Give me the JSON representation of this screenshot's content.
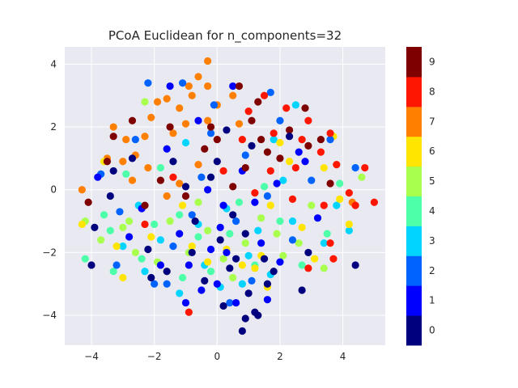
{
  "chart_data": {
    "type": "scatter",
    "title": "PCoA Euclidean for n_components=32",
    "xlabel": "",
    "ylabel": "",
    "xlim": [
      -4.85,
      5.35
    ],
    "ylim": [
      -4.95,
      4.55
    ],
    "x_ticks": [
      -4,
      -2,
      0,
      2,
      4
    ],
    "y_ticks": [
      -4,
      -2,
      0,
      2,
      4
    ],
    "x_tick_labels": [
      "−4",
      "−2",
      "0",
      "2",
      "4"
    ],
    "y_tick_labels": [
      "−4",
      "−2",
      "0",
      "2",
      "4"
    ],
    "grid": true,
    "background": "#e9e9f1",
    "colormap": "jet",
    "colorbar": {
      "labels": [
        "0",
        "1",
        "2",
        "3",
        "4",
        "5",
        "6",
        "7",
        "8",
        "9"
      ],
      "colors": [
        "#00007f",
        "#0000ff",
        "#0063ff",
        "#00d4ff",
        "#4effa9",
        "#a9ff4e",
        "#ffe500",
        "#ff7f00",
        "#ff1600",
        "#7f0000"
      ]
    },
    "series": [
      {
        "class": 0,
        "points": [
          [
            0.8,
            -4.5
          ],
          [
            0.9,
            -4.1
          ],
          [
            1.2,
            -3.9
          ],
          [
            1.3,
            -4.0
          ],
          [
            0.2,
            -3.7
          ],
          [
            -2.1,
            -2.8
          ],
          [
            -1.6,
            -2.6
          ],
          [
            0.4,
            -2.5
          ],
          [
            1.0,
            -3.3
          ],
          [
            1.6,
            -3.0
          ],
          [
            4.4,
            -2.4
          ],
          [
            -0.7,
            -1.0
          ],
          [
            0.1,
            -1.6
          ],
          [
            0.6,
            -2.2
          ],
          [
            -3.9,
            -1.2
          ],
          [
            -4.0,
            -2.4
          ],
          [
            -3.4,
            -0.2
          ],
          [
            -1.4,
            0.9
          ],
          [
            -0.2,
            0.4
          ],
          [
            1.1,
            1.4
          ],
          [
            -2.7,
            1.0
          ],
          [
            2.7,
            -3.2
          ],
          [
            1.8,
            -2.6
          ],
          [
            0.5,
            -0.8
          ],
          [
            -0.8,
            -2.0
          ],
          [
            2.3,
            1.7
          ],
          [
            -1.0,
            0.1
          ],
          [
            0.9,
            -1.4
          ],
          [
            -2.2,
            -1.9
          ],
          [
            -0.4,
            -2.9
          ],
          [
            1.5,
            -2.2
          ],
          [
            0.0,
            0.9
          ],
          [
            -3.3,
            0.6
          ],
          [
            2.9,
            -2.0
          ],
          [
            0.3,
            1.9
          ]
        ]
      },
      {
        "class": 1,
        "points": [
          [
            -1.0,
            -3.6
          ],
          [
            -0.5,
            -3.2
          ],
          [
            0.6,
            -3.6
          ],
          [
            0.0,
            -3.0
          ],
          [
            -1.8,
            -2.4
          ],
          [
            1.6,
            -3.5
          ],
          [
            -0.9,
            -2.4
          ],
          [
            0.3,
            -2.0
          ],
          [
            2.0,
            -2.3
          ],
          [
            -2.4,
            -0.6
          ],
          [
            1.2,
            -0.4
          ],
          [
            -0.3,
            0.0
          ],
          [
            0.8,
            0.6
          ],
          [
            -1.6,
            1.3
          ],
          [
            2.6,
            1.2
          ],
          [
            -3.8,
            0.4
          ],
          [
            0.1,
            -1.2
          ],
          [
            -1.2,
            -1.4
          ],
          [
            1.9,
            0.2
          ],
          [
            -0.6,
            2.2
          ],
          [
            -2.8,
            -1.5
          ],
          [
            3.2,
            -0.9
          ],
          [
            0.5,
            3.3
          ],
          [
            -1.5,
            3.3
          ],
          [
            2.8,
            0.9
          ],
          [
            0.2,
            -0.5
          ],
          [
            1.4,
            -1.7
          ],
          [
            -0.2,
            -1.9
          ]
        ]
      },
      {
        "class": 2,
        "points": [
          [
            -2.2,
            3.4
          ],
          [
            -1.1,
            3.4
          ],
          [
            -0.2,
            1.8
          ],
          [
            2.0,
            2.2
          ],
          [
            -3.7,
            0.5
          ],
          [
            -3.1,
            -0.7
          ],
          [
            -2.0,
            -3.0
          ],
          [
            -1.6,
            -3.0
          ],
          [
            1.1,
            -2.9
          ],
          [
            0.4,
            -3.6
          ],
          [
            1.6,
            -0.2
          ],
          [
            -0.5,
            0.4
          ],
          [
            0.9,
            1.1
          ],
          [
            -2.6,
            1.6
          ],
          [
            1.7,
            3.1
          ],
          [
            3.6,
            1.6
          ],
          [
            4.4,
            0.7
          ],
          [
            -0.8,
            -0.8
          ],
          [
            0.6,
            -1.0
          ],
          [
            -1.4,
            -1.8
          ],
          [
            2.4,
            -1.6
          ],
          [
            -3.2,
            -2.4
          ],
          [
            3.0,
            0.3
          ],
          [
            -0.1,
            2.7
          ]
        ]
      },
      {
        "class": 3,
        "points": [
          [
            -1.2,
            -3.3
          ],
          [
            0.1,
            -3.1
          ],
          [
            0.8,
            -3.0
          ],
          [
            2.4,
            -1.0
          ],
          [
            3.8,
            -0.5
          ],
          [
            4.2,
            -1.3
          ],
          [
            4.4,
            0.7
          ],
          [
            -2.5,
            -0.5
          ],
          [
            -1.8,
            -1.6
          ],
          [
            -0.6,
            -1.1
          ],
          [
            1.3,
            -1.3
          ],
          [
            2.1,
            0.3
          ],
          [
            -1.0,
            1.5
          ],
          [
            2.5,
            2.7
          ],
          [
            1.8,
            1.6
          ],
          [
            -3.0,
            -1.8
          ],
          [
            0.3,
            -0.6
          ],
          [
            1.0,
            -2.1
          ],
          [
            3.4,
            -1.7
          ],
          [
            -0.4,
            -2.4
          ],
          [
            -2.3,
            -2.6
          ],
          [
            1.7,
            -2.7
          ]
        ]
      },
      {
        "class": 4,
        "points": [
          [
            -4.2,
            -2.2
          ],
          [
            -3.4,
            -1.3
          ],
          [
            -2.9,
            0.5
          ],
          [
            -3.3,
            -2.6
          ],
          [
            -2.0,
            -1.1
          ],
          [
            -1.2,
            -0.8
          ],
          [
            0.4,
            -1.4
          ],
          [
            2.0,
            -1.0
          ],
          [
            3.5,
            -1.4
          ],
          [
            1.5,
            0.1
          ],
          [
            -0.6,
            -1.5
          ],
          [
            -1.8,
            0.7
          ],
          [
            0.7,
            -0.4
          ],
          [
            -2.4,
            -2.2
          ],
          [
            1.2,
            -2.4
          ],
          [
            -0.2,
            -2.6
          ],
          [
            2.7,
            -2.4
          ],
          [
            3.9,
            0.2
          ],
          [
            -3.6,
            -0.8
          ],
          [
            -1.1,
            -2.8
          ]
        ]
      },
      {
        "class": 5,
        "points": [
          [
            -4.2,
            -1.0
          ],
          [
            -3.7,
            -1.6
          ],
          [
            -3.0,
            -1.2
          ],
          [
            -2.3,
            2.8
          ],
          [
            -2.8,
            -1.0
          ],
          [
            -1.5,
            -1.0
          ],
          [
            -0.9,
            -2.0
          ],
          [
            0.2,
            -2.2
          ],
          [
            1.4,
            -0.9
          ],
          [
            2.1,
            -2.1
          ],
          [
            3.4,
            -2.5
          ],
          [
            4.6,
            0.4
          ],
          [
            -1.9,
            -2.3
          ],
          [
            -0.3,
            -1.3
          ],
          [
            0.9,
            -1.7
          ],
          [
            1.9,
            -1.4
          ],
          [
            -2.6,
            -2.0
          ],
          [
            3.0,
            -0.5
          ],
          [
            -0.6,
            -0.4
          ],
          [
            0.5,
            -2.8
          ],
          [
            2.6,
            -1.7
          ]
        ]
      },
      {
        "class": 6,
        "points": [
          [
            -4.3,
            -1.1
          ],
          [
            -3.6,
            0.9
          ],
          [
            -3.0,
            -2.8
          ],
          [
            -3.2,
            -1.8
          ],
          [
            -1.1,
            -0.5
          ],
          [
            0.8,
            -2.4
          ],
          [
            1.6,
            -3.1
          ],
          [
            2.7,
            -1.2
          ],
          [
            3.1,
            -2.2
          ],
          [
            3.4,
            0.7
          ],
          [
            3.7,
            1.7
          ],
          [
            4.2,
            -1.1
          ],
          [
            3.9,
            -0.3
          ],
          [
            -2.1,
            -1.5
          ],
          [
            1.2,
            -2.5
          ],
          [
            -0.3,
            -2.3
          ],
          [
            1.7,
            -0.5
          ],
          [
            2.3,
            0.9
          ],
          [
            -1.6,
            -2.6
          ],
          [
            0.3,
            -1.9
          ],
          [
            2.0,
            1.5
          ],
          [
            -0.8,
            -1.8
          ],
          [
            1.4,
            -2.1
          ]
        ]
      },
      {
        "class": 7,
        "points": [
          [
            -0.3,
            4.1
          ],
          [
            -4.3,
            0.0
          ],
          [
            -3.5,
            1.0
          ],
          [
            -2.9,
            1.6
          ],
          [
            -2.1,
            2.3
          ],
          [
            -1.6,
            2.9
          ],
          [
            -1.2,
            2.6
          ],
          [
            -0.8,
            3.0
          ],
          [
            -0.6,
            3.6
          ],
          [
            -0.3,
            3.3
          ],
          [
            0.0,
            2.7
          ],
          [
            0.5,
            3.0
          ],
          [
            -2.3,
            1.7
          ],
          [
            -1.0,
            2.1
          ],
          [
            -3.3,
            2.0
          ],
          [
            -2.7,
            0.3
          ],
          [
            -1.6,
            -0.2
          ],
          [
            -0.6,
            0.8
          ],
          [
            -2.2,
            0.7
          ],
          [
            -1.4,
            1.8
          ],
          [
            -3.0,
            0.9
          ],
          [
            -0.3,
            2.2
          ],
          [
            0.7,
            2.1
          ],
          [
            -1.9,
            2.8
          ],
          [
            4.3,
            -0.4
          ],
          [
            -2.6,
            1.1
          ],
          [
            -0.9,
            3.3
          ],
          [
            -1.2,
            0.2
          ]
        ]
      },
      {
        "class": 8,
        "points": [
          [
            -0.9,
            -3.9
          ],
          [
            5.0,
            -0.4
          ],
          [
            4.7,
            0.7
          ],
          [
            3.8,
            0.8
          ],
          [
            3.6,
            1.8
          ],
          [
            4.2,
            -0.1
          ],
          [
            3.3,
            1.2
          ],
          [
            2.9,
            2.2
          ],
          [
            2.2,
            2.6
          ],
          [
            1.5,
            3.0
          ],
          [
            1.0,
            2.5
          ],
          [
            1.8,
            1.8
          ],
          [
            2.5,
            0.7
          ],
          [
            3.4,
            -0.5
          ],
          [
            3.6,
            -1.7
          ],
          [
            2.9,
            -2.5
          ],
          [
            -2.3,
            -1.1
          ],
          [
            -1.4,
            0.4
          ],
          [
            0.2,
            0.6
          ],
          [
            1.2,
            -0.1
          ],
          [
            2.4,
            -0.3
          ],
          [
            3.7,
            -2.2
          ],
          [
            4.4,
            -0.5
          ],
          [
            0.8,
            1.6
          ],
          [
            2.7,
            1.6
          ],
          [
            1.7,
            0.6
          ]
        ]
      },
      {
        "class": 9,
        "points": [
          [
            0.7,
            3.3
          ],
          [
            1.1,
            2.2
          ],
          [
            -3.3,
            1.7
          ],
          [
            -3.5,
            0.9
          ],
          [
            -1.5,
            2.0
          ],
          [
            -0.2,
            2.0
          ],
          [
            1.4,
            1.6
          ],
          [
            2.0,
            1.0
          ],
          [
            2.8,
            2.6
          ],
          [
            3.3,
            1.6
          ],
          [
            -4.1,
            -0.4
          ],
          [
            -2.3,
            -0.5
          ],
          [
            -1.0,
            -0.2
          ],
          [
            0.5,
            0.1
          ],
          [
            1.6,
            1.2
          ],
          [
            3.6,
            0.2
          ],
          [
            2.3,
            1.9
          ],
          [
            -0.4,
            1.3
          ],
          [
            0.9,
            0.7
          ],
          [
            -1.8,
            0.3
          ],
          [
            2.9,
            1.4
          ],
          [
            1.3,
            2.8
          ],
          [
            -2.7,
            2.2
          ],
          [
            0.0,
            1.6
          ]
        ]
      }
    ]
  }
}
